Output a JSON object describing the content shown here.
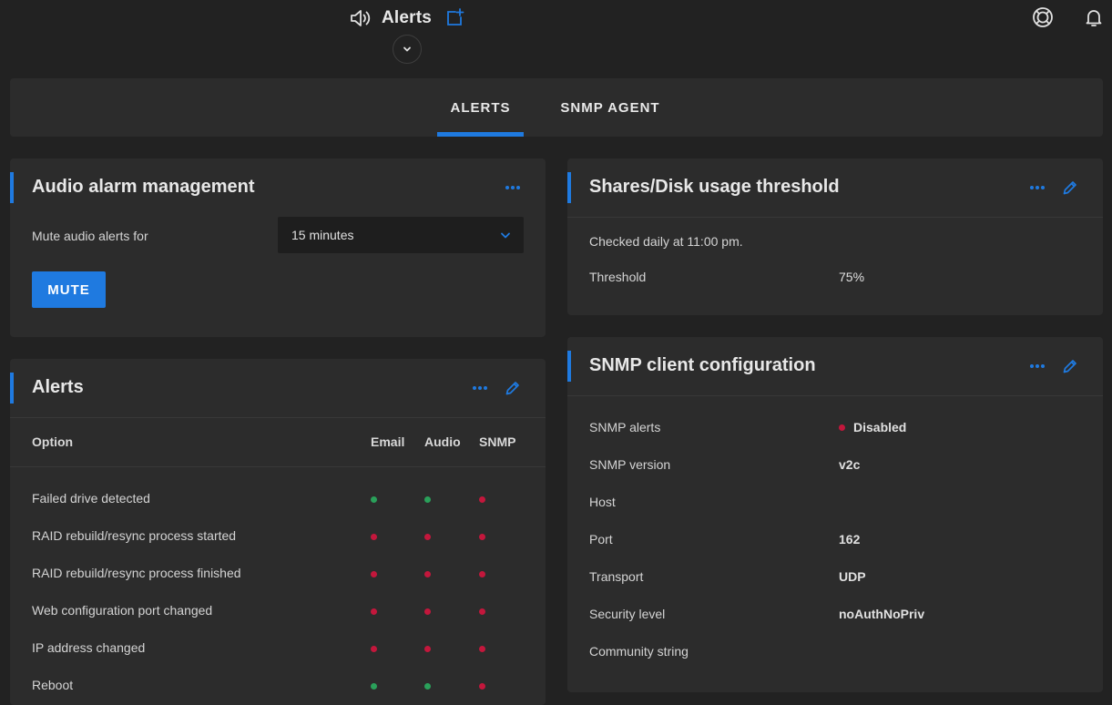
{
  "header": {
    "title": "Alerts",
    "speaker_icon": "speaker-icon",
    "add_widget_icon": "add-widget-icon",
    "collapse_icon": "chevron-down-icon",
    "help_icon": "lifebuoy-icon",
    "notifications_icon": "bell-icon"
  },
  "tabs": [
    {
      "label": "ALERTS",
      "active": true
    },
    {
      "label": "SNMP AGENT",
      "active": false
    }
  ],
  "audio_card": {
    "title": "Audio alarm management",
    "mute_label": "Mute audio alerts for",
    "mute_value": "15 minutes",
    "mute_button": "MUTE"
  },
  "alerts_card": {
    "title": "Alerts",
    "columns": {
      "option": "Option",
      "email": "Email",
      "audio": "Audio",
      "snmp": "SNMP"
    },
    "rows": [
      {
        "label": "Failed drive detected",
        "email": true,
        "audio": true,
        "snmp": false
      },
      {
        "label": "RAID rebuild/resync process started",
        "email": false,
        "audio": false,
        "snmp": false
      },
      {
        "label": "RAID rebuild/resync process finished",
        "email": false,
        "audio": false,
        "snmp": false
      },
      {
        "label": "Web configuration port changed",
        "email": false,
        "audio": false,
        "snmp": false
      },
      {
        "label": "IP address changed",
        "email": false,
        "audio": false,
        "snmp": false
      },
      {
        "label": "Reboot",
        "email": true,
        "audio": true,
        "snmp": false
      }
    ]
  },
  "threshold_card": {
    "title": "Shares/Disk usage threshold",
    "schedule": "Checked daily at 11:00 pm.",
    "threshold_label": "Threshold",
    "threshold_value": "75%"
  },
  "snmp_card": {
    "title": "SNMP client configuration",
    "rows": [
      {
        "label": "SNMP alerts",
        "value": "Disabled"
      },
      {
        "label": "SNMP version",
        "value": "v2c"
      },
      {
        "label": "Host",
        "value": ""
      },
      {
        "label": "Port",
        "value": "162"
      },
      {
        "label": "Transport",
        "value": "UDP"
      },
      {
        "label": "Security level",
        "value": "noAuthNoPriv"
      },
      {
        "label": "Community string",
        "value": ""
      }
    ]
  },
  "colors": {
    "accent": "#1f7ae0",
    "enabled": "#2aa05a",
    "disabled": "#c3173c",
    "background": "#222222",
    "card": "#2c2c2c"
  }
}
